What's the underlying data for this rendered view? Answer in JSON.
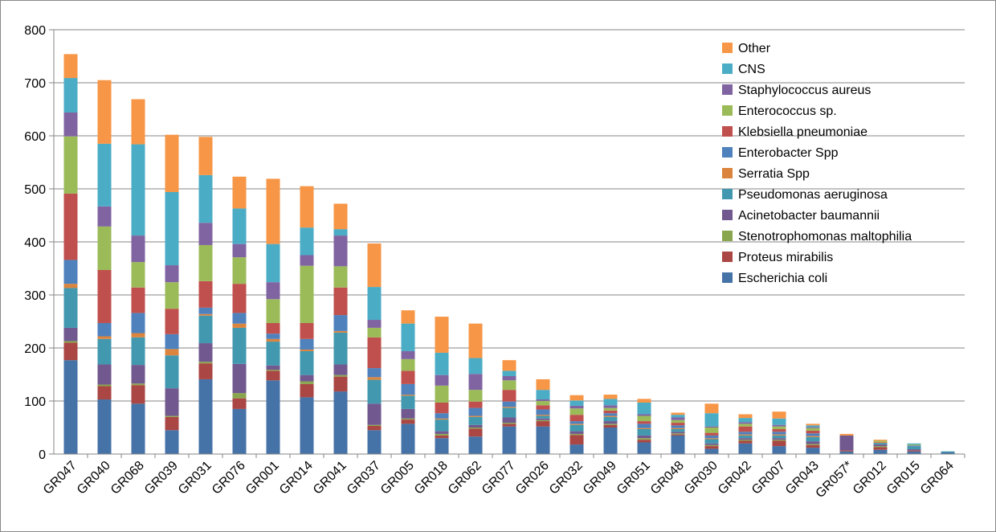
{
  "chart_data": {
    "type": "bar",
    "stacked": true,
    "title": "",
    "xlabel": "",
    "ylabel": "",
    "ylim": [
      0,
      800
    ],
    "yticks": [
      0,
      100,
      200,
      300,
      400,
      500,
      600,
      700,
      800
    ],
    "grid": true,
    "legend_position": "top-right",
    "categories": [
      "GR047",
      "GR040",
      "GR068",
      "GR039",
      "GR031",
      "GR076",
      "GR001",
      "GR014",
      "GR041",
      "GR037",
      "GR005",
      "GR018",
      "GR062",
      "GR077",
      "GR026",
      "GR032",
      "GR049",
      "GR051",
      "GR048",
      "GR030",
      "GR042",
      "GR007",
      "GR043",
      "GR057*",
      "GR012",
      "GR015",
      "GR064"
    ],
    "series": [
      {
        "name": "Escherichia coli",
        "color": "#4572A7",
        "values": [
          177,
          103,
          95,
          45,
          141,
          85,
          139,
          107,
          118,
          45,
          57,
          30,
          33,
          52,
          52,
          18,
          50,
          22,
          35,
          10,
          20,
          15,
          12,
          5,
          8,
          5,
          3
        ]
      },
      {
        "name": "Proteus mirabilis",
        "color": "#AA4643",
        "values": [
          33,
          25,
          35,
          25,
          30,
          20,
          18,
          25,
          28,
          8,
          8,
          5,
          15,
          5,
          10,
          18,
          5,
          5,
          2,
          5,
          5,
          10,
          5,
          2,
          5,
          2,
          0
        ]
      },
      {
        "name": "Stenotrophomonas maltophilia",
        "color": "#89A54E",
        "values": [
          3,
          3,
          3,
          2,
          3,
          10,
          2,
          5,
          3,
          2,
          2,
          3,
          2,
          2,
          2,
          2,
          2,
          3,
          2,
          2,
          2,
          2,
          2,
          0,
          2,
          0,
          0
        ]
      },
      {
        "name": "Acinetobacter baumannii",
        "color": "#71588F",
        "values": [
          25,
          38,
          35,
          52,
          35,
          55,
          8,
          12,
          20,
          40,
          18,
          5,
          5,
          10,
          3,
          5,
          5,
          5,
          3,
          3,
          3,
          3,
          5,
          28,
          3,
          2,
          0
        ]
      },
      {
        "name": "Pseudomonas aeruginosa",
        "color": "#4198AF",
        "values": [
          75,
          48,
          52,
          62,
          52,
          68,
          45,
          45,
          60,
          45,
          25,
          22,
          15,
          18,
          5,
          12,
          8,
          12,
          5,
          8,
          5,
          5,
          8,
          0,
          3,
          5,
          2
        ]
      },
      {
        "name": "Serratia Spp",
        "color": "#DB843D",
        "values": [
          8,
          5,
          8,
          12,
          3,
          8,
          5,
          3,
          3,
          5,
          2,
          2,
          2,
          2,
          2,
          2,
          2,
          2,
          2,
          2,
          2,
          2,
          2,
          0,
          2,
          0,
          0
        ]
      },
      {
        "name": "Enterobacter Spp",
        "color": "#4F81BD",
        "values": [
          45,
          25,
          38,
          28,
          12,
          20,
          10,
          20,
          30,
          17,
          20,
          10,
          15,
          10,
          10,
          5,
          5,
          8,
          5,
          5,
          5,
          5,
          5,
          0,
          0,
          2,
          0
        ]
      },
      {
        "name": "Klebsiella pneumoniae",
        "color": "#C0504D",
        "values": [
          125,
          100,
          48,
          48,
          50,
          55,
          20,
          30,
          52,
          58,
          25,
          20,
          12,
          22,
          8,
          12,
          5,
          5,
          5,
          5,
          10,
          5,
          5,
          0,
          0,
          0,
          0
        ]
      },
      {
        "name": "Enterococcus sp.",
        "color": "#9BBB59",
        "values": [
          108,
          82,
          48,
          50,
          68,
          50,
          45,
          108,
          40,
          18,
          22,
          32,
          22,
          18,
          8,
          12,
          5,
          10,
          5,
          10,
          5,
          5,
          5,
          0,
          2,
          2,
          0
        ]
      },
      {
        "name": "Staphylococcus aureus",
        "color": "#8064A2",
        "values": [
          45,
          38,
          50,
          32,
          42,
          25,
          32,
          20,
          58,
          15,
          15,
          20,
          30,
          8,
          3,
          5,
          5,
          3,
          5,
          2,
          3,
          3,
          2,
          0,
          0,
          0,
          0
        ]
      },
      {
        "name": "CNS",
        "color": "#4BACC6",
        "values": [
          65,
          118,
          172,
          138,
          90,
          67,
          72,
          52,
          12,
          62,
          52,
          42,
          30,
          10,
          18,
          10,
          12,
          22,
          5,
          25,
          8,
          12,
          3,
          0,
          0,
          2,
          0
        ]
      },
      {
        "name": "Other",
        "color": "#F79646",
        "values": [
          45,
          120,
          85,
          108,
          72,
          60,
          123,
          78,
          48,
          82,
          25,
          68,
          65,
          20,
          20,
          10,
          8,
          7,
          4,
          18,
          7,
          13,
          3,
          3,
          2,
          0,
          0
        ]
      }
    ]
  }
}
